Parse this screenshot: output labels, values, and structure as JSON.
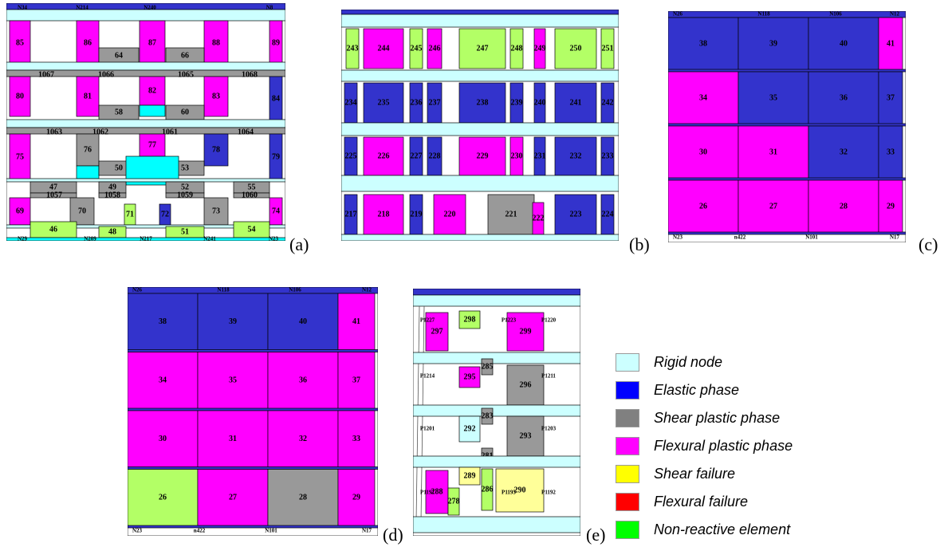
{
  "colors": {
    "rigid": "#ccffff",
    "elastic": "#3333cc",
    "shear": "#999999",
    "flexural": "#ff00ff",
    "shearfail": "#ffff99",
    "flexfail": "#ff0000",
    "nonreact": "#b3ff66",
    "cyan": "#00ffff"
  },
  "legend": [
    {
      "key": "rigid",
      "label": "Rigid node",
      "color": "#ccffff"
    },
    {
      "key": "elastic",
      "label": "Elastic phase",
      "color": "#0000ff"
    },
    {
      "key": "shear",
      "label": "Shear plastic phase",
      "color": "#808080"
    },
    {
      "key": "flexural",
      "label": "Flexural plastic phase",
      "color": "#ff00ff"
    },
    {
      "key": "shearfail",
      "label": "Shear failure",
      "color": "#ffff00"
    },
    {
      "key": "flexfail",
      "label": "Flexural failure",
      "color": "#ff0000"
    },
    {
      "key": "nonreact",
      "label": "Non-reactive element",
      "color": "#00ff00"
    }
  ],
  "panels": [
    {
      "id": "a",
      "tag": "(a)",
      "elements": [
        {
          "n": "85",
          "c": "flexural"
        },
        {
          "n": "86",
          "c": "flexural"
        },
        {
          "n": "87",
          "c": "flexural"
        },
        {
          "n": "88",
          "c": "flexural"
        },
        {
          "n": "89",
          "c": "flexural"
        },
        {
          "n": "64",
          "c": "shear"
        },
        {
          "n": "66",
          "c": "shear"
        },
        {
          "n": "1067",
          "c": "shear"
        },
        {
          "n": "1066",
          "c": "shear"
        },
        {
          "n": "1065",
          "c": "shear"
        },
        {
          "n": "1068",
          "c": "shear"
        },
        {
          "n": "80",
          "c": "flexural"
        },
        {
          "n": "81",
          "c": "flexural"
        },
        {
          "n": "82",
          "c": "flexural"
        },
        {
          "n": "83",
          "c": "flexural"
        },
        {
          "n": "84",
          "c": "elastic"
        },
        {
          "n": "58",
          "c": "shear"
        },
        {
          "n": "60",
          "c": "shear"
        },
        {
          "n": "1063",
          "c": "shear"
        },
        {
          "n": "1062",
          "c": "shear"
        },
        {
          "n": "1061",
          "c": "shear"
        },
        {
          "n": "1064",
          "c": "shear"
        },
        {
          "n": "75",
          "c": "flexural"
        },
        {
          "n": "76",
          "c": "shear"
        },
        {
          "n": "77",
          "c": "flexural"
        },
        {
          "n": "78",
          "c": "elastic"
        },
        {
          "n": "79",
          "c": "elastic"
        },
        {
          "n": "50",
          "c": "shear"
        },
        {
          "n": "53",
          "c": "shear"
        },
        {
          "n": "47",
          "c": "shear"
        },
        {
          "n": "49",
          "c": "shear"
        },
        {
          "n": "52",
          "c": "shear"
        },
        {
          "n": "55",
          "c": "shear"
        },
        {
          "n": "69",
          "c": "flexural"
        },
        {
          "n": "70",
          "c": "shear"
        },
        {
          "n": "71",
          "c": "nonreact"
        },
        {
          "n": "72",
          "c": "elastic"
        },
        {
          "n": "73",
          "c": "shear"
        },
        {
          "n": "74",
          "c": "flexural"
        },
        {
          "n": "46",
          "c": "nonreact"
        },
        {
          "n": "48",
          "c": "nonreact"
        },
        {
          "n": "51",
          "c": "nonreact"
        },
        {
          "n": "54",
          "c": "nonreact"
        }
      ]
    },
    {
      "id": "b",
      "tag": "(b)",
      "elements": [
        {
          "n": "243",
          "c": "nonreact"
        },
        {
          "n": "244",
          "c": "flexural"
        },
        {
          "n": "245",
          "c": "nonreact"
        },
        {
          "n": "246",
          "c": "flexural"
        },
        {
          "n": "247",
          "c": "nonreact"
        },
        {
          "n": "248",
          "c": "nonreact"
        },
        {
          "n": "249",
          "c": "flexural"
        },
        {
          "n": "250",
          "c": "nonreact"
        },
        {
          "n": "251",
          "c": "nonreact"
        },
        {
          "n": "234",
          "c": "elastic"
        },
        {
          "n": "235",
          "c": "elastic"
        },
        {
          "n": "236",
          "c": "elastic"
        },
        {
          "n": "237",
          "c": "elastic"
        },
        {
          "n": "238",
          "c": "elastic"
        },
        {
          "n": "239",
          "c": "elastic"
        },
        {
          "n": "240",
          "c": "elastic"
        },
        {
          "n": "241",
          "c": "elastic"
        },
        {
          "n": "242",
          "c": "elastic"
        },
        {
          "n": "225",
          "c": "elastic"
        },
        {
          "n": "226",
          "c": "flexural"
        },
        {
          "n": "227",
          "c": "elastic"
        },
        {
          "n": "228",
          "c": "elastic"
        },
        {
          "n": "229",
          "c": "flexural"
        },
        {
          "n": "230",
          "c": "flexural"
        },
        {
          "n": "231",
          "c": "elastic"
        },
        {
          "n": "232",
          "c": "elastic"
        },
        {
          "n": "233",
          "c": "elastic"
        },
        {
          "n": "217",
          "c": "elastic"
        },
        {
          "n": "218",
          "c": "flexural"
        },
        {
          "n": "219",
          "c": "elastic"
        },
        {
          "n": "220",
          "c": "flexural"
        },
        {
          "n": "221",
          "c": "shear"
        },
        {
          "n": "222",
          "c": "flexural"
        },
        {
          "n": "223",
          "c": "elastic"
        },
        {
          "n": "224",
          "c": "elastic"
        }
      ]
    },
    {
      "id": "c",
      "tag": "(c)",
      "elements": [
        {
          "n": "38",
          "c": "elastic"
        },
        {
          "n": "39",
          "c": "elastic"
        },
        {
          "n": "40",
          "c": "elastic"
        },
        {
          "n": "41",
          "c": "flexural"
        },
        {
          "n": "34",
          "c": "flexural"
        },
        {
          "n": "35",
          "c": "elastic"
        },
        {
          "n": "36",
          "c": "elastic"
        },
        {
          "n": "37",
          "c": "elastic"
        },
        {
          "n": "30",
          "c": "flexural"
        },
        {
          "n": "31",
          "c": "flexural"
        },
        {
          "n": "32",
          "c": "elastic"
        },
        {
          "n": "33",
          "c": "elastic"
        },
        {
          "n": "26",
          "c": "flexural"
        },
        {
          "n": "27",
          "c": "flexural"
        },
        {
          "n": "28",
          "c": "flexural"
        },
        {
          "n": "29",
          "c": "flexural"
        }
      ]
    },
    {
      "id": "d",
      "tag": "(d)",
      "elements": [
        {
          "n": "38",
          "c": "elastic"
        },
        {
          "n": "39",
          "c": "elastic"
        },
        {
          "n": "40",
          "c": "elastic"
        },
        {
          "n": "41",
          "c": "flexural"
        },
        {
          "n": "34",
          "c": "flexural"
        },
        {
          "n": "35",
          "c": "flexural"
        },
        {
          "n": "36",
          "c": "flexural"
        },
        {
          "n": "37",
          "c": "flexural"
        },
        {
          "n": "30",
          "c": "flexural"
        },
        {
          "n": "31",
          "c": "flexural"
        },
        {
          "n": "32",
          "c": "flexural"
        },
        {
          "n": "33",
          "c": "flexural"
        },
        {
          "n": "26",
          "c": "nonreact"
        },
        {
          "n": "27",
          "c": "flexural"
        },
        {
          "n": "28",
          "c": "shear"
        },
        {
          "n": "29",
          "c": "flexural"
        }
      ]
    },
    {
      "id": "e",
      "tag": "(e)",
      "elements": [
        {
          "n": "297",
          "c": "flexural"
        },
        {
          "n": "298",
          "c": "nonreact"
        },
        {
          "n": "299",
          "c": "flexural"
        },
        {
          "n": "295",
          "c": "flexural"
        },
        {
          "n": "296",
          "c": "shear"
        },
        {
          "n": "292",
          "c": "rigid"
        },
        {
          "n": "293",
          "c": "shear"
        },
        {
          "n": "288",
          "c": "flexural"
        },
        {
          "n": "289",
          "c": "shearfail"
        },
        {
          "n": "290",
          "c": "shearfail"
        },
        {
          "n": "278",
          "c": "nonreact"
        },
        {
          "n": "286",
          "c": "nonreact"
        },
        {
          "n": "285",
          "c": "shear"
        },
        {
          "n": "283",
          "c": "shear"
        },
        {
          "n": "281",
          "c": "shear"
        }
      ],
      "nodes": [
        "P1227",
        "P1223",
        "P1220",
        "P1214",
        "P1211",
        "P1201",
        "P1203",
        "P1197",
        "P1195",
        "P1192"
      ]
    }
  ]
}
